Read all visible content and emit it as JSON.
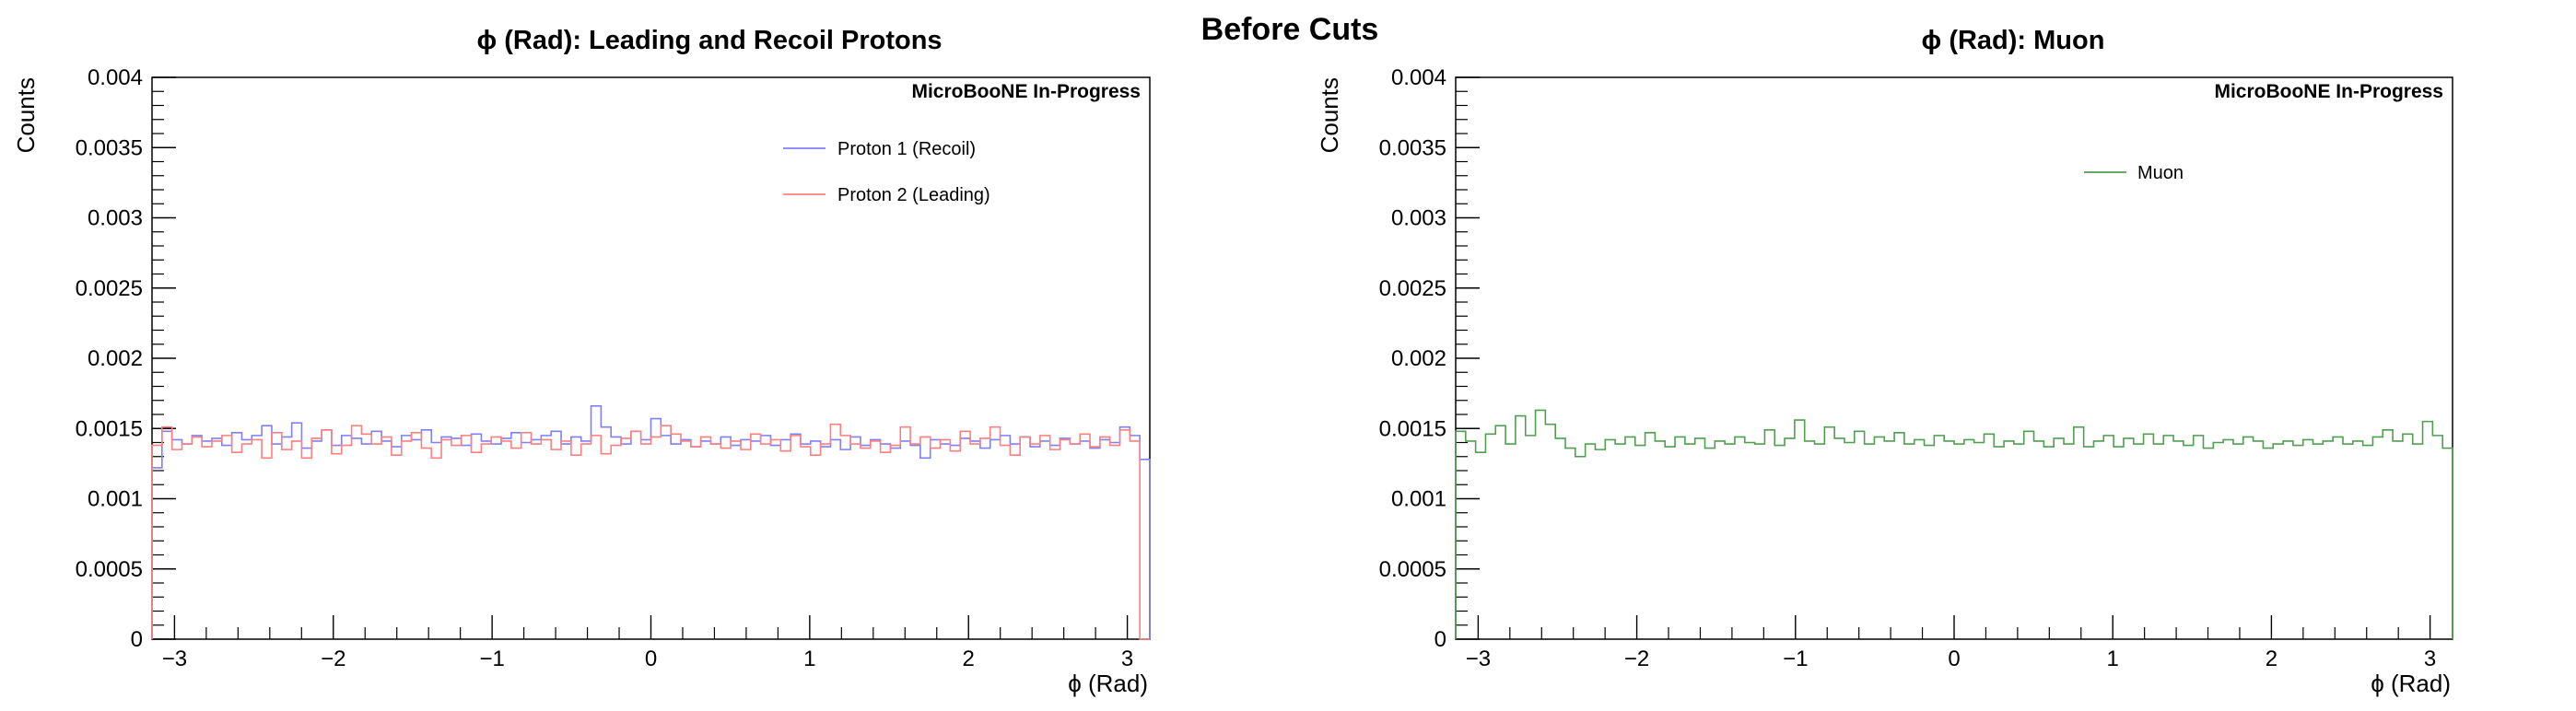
{
  "page_title": "Before Cuts",
  "chart_data": [
    {
      "type": "step-histogram",
      "title": "ϕ (Rad): Leading and Recoil Protons",
      "xlabel": "ϕ (Rad)",
      "ylabel": "Counts",
      "watermark": "MicroBooNE In-Progress",
      "xlim": [
        -3.1416,
        3.1416
      ],
      "ylim": [
        0,
        0.004
      ],
      "xticks": [
        -3,
        -2,
        -1,
        0,
        1,
        2,
        3
      ],
      "xtick_labels": [
        "−3",
        "−2",
        "−1",
        "0",
        "1",
        "2",
        "3"
      ],
      "yticks": [
        0,
        0.0005,
        0.001,
        0.0015,
        0.002,
        0.0025,
        0.003,
        0.0035,
        0.004
      ],
      "ytick_labels": [
        "0",
        "0.0005",
        "0.001",
        "0.0015",
        "0.002",
        "0.0025",
        "0.003",
        "0.0035",
        "0.004"
      ],
      "grid": false,
      "legend_position": "top-right",
      "bins": 100,
      "series": [
        {
          "name": "Proton 1 (Recoil)",
          "color": "#7f7fff",
          "values": [
            0.00122,
            0.00148,
            0.00142,
            0.00139,
            0.00145,
            0.00141,
            0.00143,
            0.00138,
            0.00147,
            0.00142,
            0.00145,
            0.00152,
            0.00139,
            0.00144,
            0.00154,
            0.00136,
            0.00141,
            0.00149,
            0.00138,
            0.00145,
            0.00143,
            0.00139,
            0.00148,
            0.00141,
            0.00137,
            0.00145,
            0.00142,
            0.00149,
            0.0014,
            0.00144,
            0.00143,
            0.00138,
            0.00146,
            0.00141,
            0.00139,
            0.00143,
            0.00147,
            0.0014,
            0.00142,
            0.00145,
            0.00148,
            0.00139,
            0.00144,
            0.00141,
            0.00166,
            0.00151,
            0.00144,
            0.00139,
            0.00148,
            0.00142,
            0.00157,
            0.00145,
            0.00139,
            0.00142,
            0.00137,
            0.00141,
            0.00139,
            0.00144,
            0.00138,
            0.00142,
            0.00141,
            0.00145,
            0.00138,
            0.00142,
            0.00146,
            0.00139,
            0.00141,
            0.00137,
            0.00142,
            0.00135,
            0.00144,
            0.00138,
            0.00142,
            0.00139,
            0.00136,
            0.00141,
            0.00138,
            0.00129,
            0.00142,
            0.00139,
            0.00138,
            0.00143,
            0.00141,
            0.00136,
            0.00142,
            0.00145,
            0.00139,
            0.00144,
            0.00137,
            0.00141,
            0.00138,
            0.00143,
            0.00139,
            0.00141,
            0.00136,
            0.00142,
            0.0014,
            0.00151,
            0.00145,
            0.00128
          ]
        },
        {
          "name": "Proton 2 (Leading)",
          "color": "#ff7f7f",
          "values": [
            0.00138,
            0.00151,
            0.00135,
            0.00139,
            0.00144,
            0.00137,
            0.00141,
            0.00145,
            0.00133,
            0.00139,
            0.00142,
            0.00129,
            0.00147,
            0.00135,
            0.00141,
            0.00129,
            0.00143,
            0.00149,
            0.00132,
            0.00138,
            0.00152,
            0.00146,
            0.00139,
            0.00144,
            0.00131,
            0.00141,
            0.00147,
            0.00136,
            0.00129,
            0.00142,
            0.00138,
            0.00145,
            0.00133,
            0.00139,
            0.00144,
            0.00141,
            0.00136,
            0.00147,
            0.00139,
            0.00142,
            0.00135,
            0.00141,
            0.00131,
            0.00139,
            0.00145,
            0.00132,
            0.00138,
            0.00143,
            0.00148,
            0.00139,
            0.00144,
            0.00152,
            0.00146,
            0.00141,
            0.00137,
            0.00144,
            0.00139,
            0.00136,
            0.00141,
            0.00135,
            0.00146,
            0.00139,
            0.00142,
            0.00134,
            0.00145,
            0.00137,
            0.00131,
            0.00139,
            0.00153,
            0.00145,
            0.00139,
            0.00136,
            0.00141,
            0.00133,
            0.00138,
            0.00151,
            0.00139,
            0.00144,
            0.00136,
            0.00142,
            0.00134,
            0.00148,
            0.00139,
            0.00143,
            0.00151,
            0.00138,
            0.00131,
            0.00144,
            0.00139,
            0.00145,
            0.00135,
            0.00142,
            0.00139,
            0.00146,
            0.00137,
            0.00144,
            0.00138,
            0.00149,
            0.00141,
            0.0
          ]
        }
      ]
    },
    {
      "type": "step-histogram",
      "title": "ϕ (Rad): Muon",
      "xlabel": "ϕ (Rad)",
      "ylabel": "Counts",
      "watermark": "MicroBooNE In-Progress",
      "xlim": [
        -3.1416,
        3.1416
      ],
      "ylim": [
        0,
        0.004
      ],
      "xticks": [
        -3,
        -2,
        -1,
        0,
        1,
        2,
        3
      ],
      "xtick_labels": [
        "−3",
        "−2",
        "−1",
        "0",
        "1",
        "2",
        "3"
      ],
      "yticks": [
        0,
        0.0005,
        0.001,
        0.0015,
        0.002,
        0.0025,
        0.003,
        0.0035,
        0.004
      ],
      "ytick_labels": [
        "0",
        "0.0005",
        "0.001",
        "0.0015",
        "0.002",
        "0.0025",
        "0.003",
        "0.0035",
        "0.004"
      ],
      "grid": false,
      "legend_position": "top-right",
      "bins": 100,
      "series": [
        {
          "name": "Muon",
          "color": "#4f9f4f",
          "values": [
            0.00148,
            0.00141,
            0.00133,
            0.00146,
            0.00152,
            0.00139,
            0.00159,
            0.00145,
            0.00163,
            0.00153,
            0.00143,
            0.00136,
            0.0013,
            0.00139,
            0.00135,
            0.00142,
            0.00139,
            0.00144,
            0.00138,
            0.00147,
            0.00141,
            0.00137,
            0.00144,
            0.00139,
            0.00143,
            0.00136,
            0.00141,
            0.00139,
            0.00144,
            0.0014,
            0.00139,
            0.00149,
            0.00138,
            0.00143,
            0.00156,
            0.00141,
            0.00139,
            0.00151,
            0.00143,
            0.0014,
            0.00148,
            0.00139,
            0.00144,
            0.00141,
            0.00147,
            0.00139,
            0.00142,
            0.00138,
            0.00145,
            0.00141,
            0.00139,
            0.00142,
            0.0014,
            0.00146,
            0.00137,
            0.00141,
            0.00139,
            0.00148,
            0.00141,
            0.00137,
            0.00143,
            0.00139,
            0.00151,
            0.00137,
            0.00141,
            0.00145,
            0.00137,
            0.00143,
            0.00139,
            0.00146,
            0.00139,
            0.00145,
            0.00141,
            0.00138,
            0.00145,
            0.00136,
            0.0014,
            0.00142,
            0.00139,
            0.00144,
            0.00141,
            0.00136,
            0.00139,
            0.00141,
            0.00138,
            0.00142,
            0.00139,
            0.00141,
            0.00144,
            0.00139,
            0.00141,
            0.00138,
            0.00144,
            0.00149,
            0.00141,
            0.00146,
            0.00139,
            0.00155,
            0.00145,
            0.00136
          ]
        }
      ]
    }
  ]
}
